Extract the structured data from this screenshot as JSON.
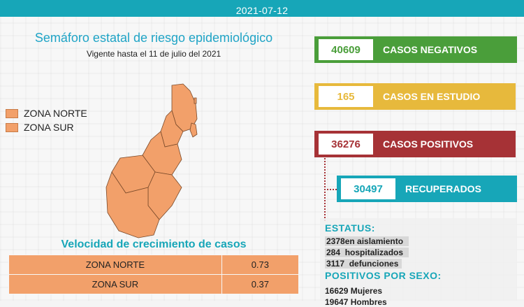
{
  "header": {
    "date": "2021-07-12"
  },
  "semaforo": {
    "title": "Semáforo estatal de riesgo epidemiológico",
    "subtitle": "Vigente hasta el 11 de julio del 2021",
    "legend": [
      {
        "label": "ZONA NORTE",
        "color": "#f2a06a"
      },
      {
        "label": "ZONA SUR",
        "color": "#f2a06a"
      }
    ]
  },
  "speed": {
    "title": "Velocidad de crecimiento de casos",
    "rows": [
      {
        "zone": "ZONA NORTE",
        "value": "0.73"
      },
      {
        "zone": "ZONA SUR",
        "value": "0.37"
      }
    ]
  },
  "stats": {
    "negativos": {
      "number": "40609",
      "label": "CASOS NEGATIVOS",
      "color": "#4a9e3a"
    },
    "estudio": {
      "number": "165",
      "label": "CASOS EN ESTUDIO",
      "color": "#e7b93c"
    },
    "positivos": {
      "number": "36276",
      "label": "CASOS POSITIVOS",
      "color": "#a63236"
    },
    "recuperados": {
      "number": "30497",
      "label": "RECUPERADOS",
      "color": "#17a6b8"
    }
  },
  "estatus": {
    "title": "ESTATUS:",
    "rows": [
      {
        "value": "2378",
        "label": "en aislamiento"
      },
      {
        "value": "284",
        "label": "hospitalizados"
      },
      {
        "value": "3117",
        "label": "defunciones"
      }
    ]
  },
  "sexo": {
    "title": "POSITIVOS POR SEXO:",
    "rows": [
      {
        "value": "16629",
        "label": "Mujeres"
      },
      {
        "value": "19647",
        "label": "Hombres"
      }
    ]
  },
  "colors": {
    "accent": "#17a6b8",
    "zone": "#f2a06a"
  }
}
